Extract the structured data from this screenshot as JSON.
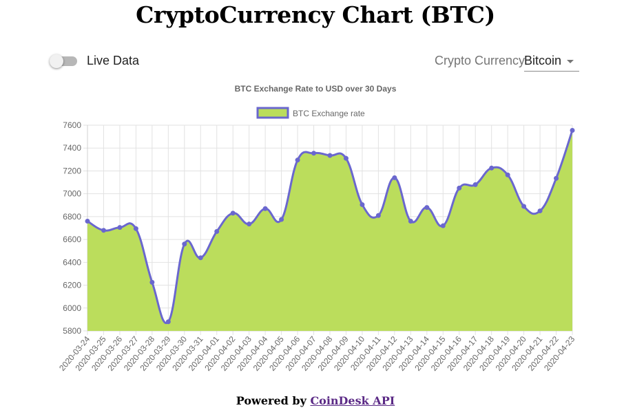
{
  "page": {
    "title": "CryptoCurrency Chart (BTC)"
  },
  "controls": {
    "live_label": "Live Data",
    "live_enabled": false,
    "currency_label": "Crypto Currency",
    "currency_value": "Bitcoin"
  },
  "footer": {
    "prefix": "Powered by ",
    "link_text": "CoinDesk API"
  },
  "colors": {
    "fill": "#bbdd5c",
    "line": "#6a67ce",
    "grid": "#e2e2e2",
    "tick_text": "#666666"
  },
  "chart_data": {
    "type": "area",
    "title": "BTC Exchange Rate to USD over 30 Days",
    "legend_position": "top",
    "grid": true,
    "ylim": [
      5800,
      7600
    ],
    "yticks": [
      5800,
      6000,
      6200,
      6400,
      6600,
      6800,
      7000,
      7200,
      7400,
      7600
    ],
    "x": [
      "2020-03-24",
      "2020-03-25",
      "2020-03-26",
      "2020-03-27",
      "2020-03-28",
      "2020-03-29",
      "2020-03-30",
      "2020-03-31",
      "2020-04-01",
      "2020-04-02",
      "2020-04-03",
      "2020-04-04",
      "2020-04-05",
      "2020-04-06",
      "2020-04-07",
      "2020-04-08",
      "2020-04-09",
      "2020-04-10",
      "2020-04-11",
      "2020-04-12",
      "2020-04-13",
      "2020-04-14",
      "2020-04-15",
      "2020-04-16",
      "2020-04-17",
      "2020-04-18",
      "2020-04-19",
      "2020-04-20",
      "2020-04-21",
      "2020-04-22",
      "2020-04-23"
    ],
    "series": [
      {
        "name": "BTC Exchange rate",
        "values": [
          6760,
          6680,
          6705,
          6695,
          6225,
          5880,
          6560,
          6440,
          6670,
          6830,
          6735,
          6870,
          6775,
          7295,
          7355,
          7335,
          7310,
          6905,
          6810,
          7140,
          6760,
          6880,
          6720,
          7050,
          7080,
          7225,
          7165,
          6890,
          6850,
          7135,
          7555
        ]
      }
    ]
  }
}
